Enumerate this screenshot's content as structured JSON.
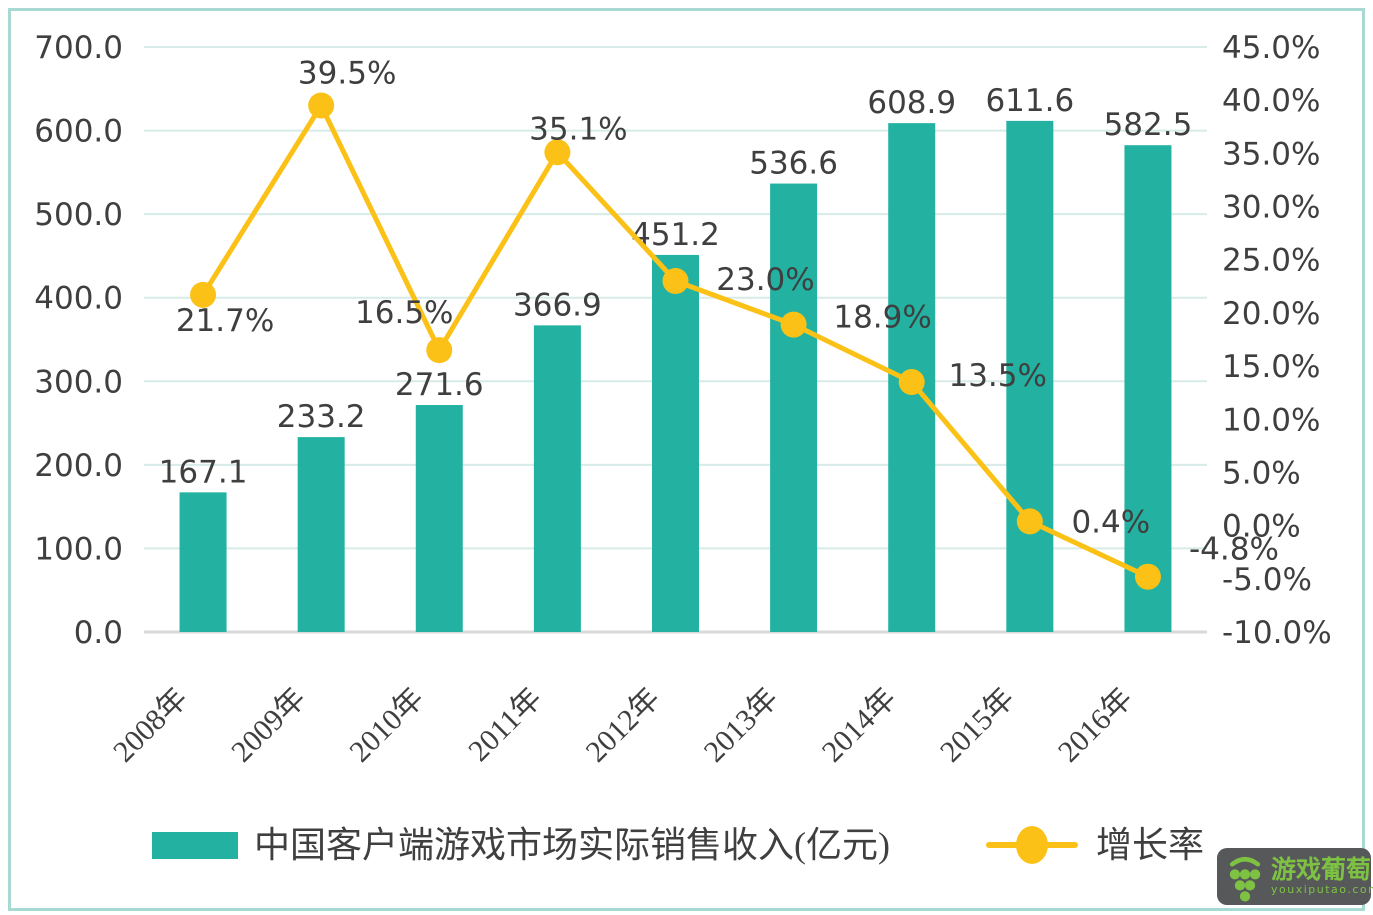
{
  "frame": {
    "border_color": "#a9d9d3",
    "background": "#ffffff"
  },
  "chart_data": {
    "type": "combo-bar-line",
    "categories": [
      "2008年",
      "2009年",
      "2010年",
      "2011年",
      "2012年",
      "2013年",
      "2014年",
      "2015年",
      "2016年"
    ],
    "series": [
      {
        "name": "中国客户端游戏市场实际销售收入(亿元)",
        "type": "bar",
        "axis": "left",
        "color": "#23b2a2",
        "values": [
          167.1,
          233.2,
          271.6,
          366.9,
          451.2,
          536.6,
          608.9,
          611.6,
          582.5
        ],
        "labels": [
          "167.1",
          "233.2",
          "271.6",
          "366.9",
          "451.2",
          "536.6",
          "608.9",
          "611.6",
          "582.5"
        ]
      },
      {
        "name": "增长率",
        "type": "line",
        "axis": "right",
        "color": "#fbc116",
        "values": [
          21.7,
          39.5,
          16.5,
          35.1,
          23.0,
          18.9,
          13.5,
          0.4,
          -4.8
        ],
        "labels": [
          "21.7%",
          "39.5%",
          "16.5%",
          "35.1%",
          "23.0%",
          "18.9%",
          "13.5%",
          "0.4%",
          "-4.8%"
        ]
      }
    ],
    "left_axis": {
      "min": 0,
      "max": 700,
      "step": 100,
      "tick_labels": [
        "0.0",
        "100.0",
        "200.0",
        "300.0",
        "400.0",
        "500.0",
        "600.0",
        "700.0"
      ]
    },
    "right_axis": {
      "min": -10,
      "max": 45,
      "step": 5,
      "tick_labels": [
        "-10.0%",
        "-5.0%",
        "0.0%",
        "5.0%",
        "10.0%",
        "15.0%",
        "20.0%",
        "25.0%",
        "30.0%",
        "35.0%",
        "40.0%",
        "45.0%"
      ]
    },
    "grid": true,
    "legend_position": "bottom",
    "colors": {
      "grid": "#d7ebe8",
      "baseline": "#d9d9d9",
      "text": "#3f3f3f"
    }
  },
  "legend": {
    "bar_label": "中国客户端游戏市场实际销售收入(亿元)",
    "line_label": "增长率"
  },
  "watermark": {
    "brand": "游戏葡萄",
    "url": "youxiputao.com",
    "bg": "#57585a",
    "green": "#7dc242"
  }
}
